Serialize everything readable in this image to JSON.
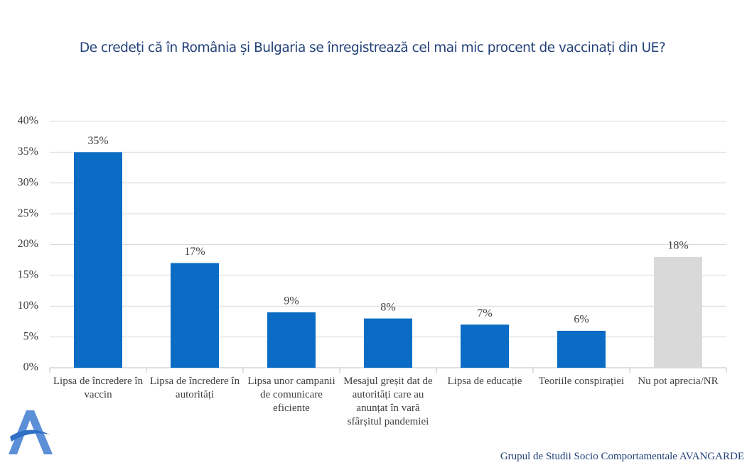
{
  "chart_data": {
    "type": "bar",
    "title": "De credeți că în România și Bulgaria se înregistrează cel mai mic procent de vaccinați din UE?",
    "categories": [
      "Lipsa de încredere în vaccin",
      "Lipsa de încredere în autorități",
      "Lipsa unor campanii de comunicare eficiente",
      "Mesajul greșit dat de autorități care au anunțat în vară sfârșitul pandemiei",
      "Lipsa de educație",
      "Teoriile conspirației",
      "Nu pot aprecia/NR"
    ],
    "values": [
      35,
      17,
      9,
      8,
      7,
      6,
      18
    ],
    "value_labels": [
      "35%",
      "17%",
      "9%",
      "8%",
      "7%",
      "6%",
      "18%"
    ],
    "colors": [
      "#0a6cc4",
      "#0a6cc4",
      "#0a6cc4",
      "#0a6cc4",
      "#0a6cc4",
      "#0a6cc4",
      "#d9d9d9"
    ],
    "ylim": [
      0,
      40
    ],
    "yticks": [
      {
        "value": 0,
        "label": "0%"
      },
      {
        "value": 5,
        "label": "5%"
      },
      {
        "value": 10,
        "label": "10%"
      },
      {
        "value": 15,
        "label": "15%"
      },
      {
        "value": 20,
        "label": "20%"
      },
      {
        "value": 25,
        "label": "25%"
      },
      {
        "value": 30,
        "label": "30%"
      },
      {
        "value": 35,
        "label": "35%"
      },
      {
        "value": 40,
        "label": "40%"
      }
    ],
    "grid": true
  },
  "footer": "Grupul de Studii Socio Comportamentale AVANGARDE"
}
